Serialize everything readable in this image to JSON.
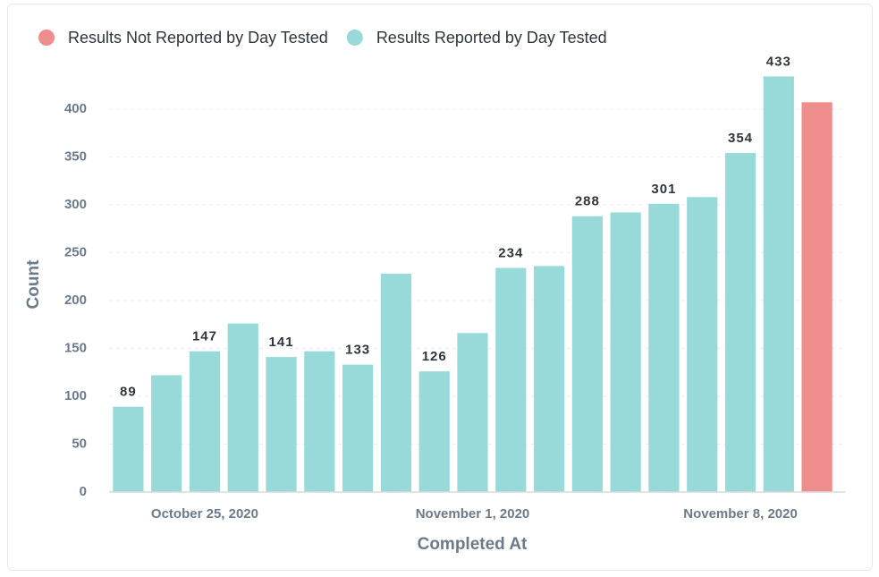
{
  "chart_data": {
    "type": "bar",
    "stacked": true,
    "x_label": "Completed At",
    "y_label": "Count",
    "categories": [
      null,
      null,
      "October 25, 2020",
      null,
      null,
      null,
      null,
      null,
      null,
      "November 1, 2020",
      null,
      null,
      null,
      null,
      null,
      null,
      "November 8, 2020",
      null,
      null
    ],
    "series": [
      {
        "name": "Results Not Reported by Day Tested",
        "color": "#ef8c8c",
        "values": [
          null,
          null,
          null,
          null,
          null,
          null,
          null,
          null,
          null,
          null,
          null,
          null,
          null,
          null,
          null,
          null,
          null,
          1,
          407
        ]
      },
      {
        "name": "Results Reported by Day Tested",
        "color": "#98d9d9",
        "values": [
          89,
          122,
          147,
          176,
          141,
          147,
          133,
          228,
          126,
          166,
          234,
          236,
          288,
          292,
          301,
          308,
          354,
          433,
          null
        ],
        "value_labels": [
          "89",
          null,
          "147",
          null,
          "141",
          null,
          "133",
          null,
          "126",
          null,
          "234",
          null,
          "288",
          null,
          "301",
          null,
          "354",
          "433",
          null
        ]
      }
    ],
    "ylim": [
      0,
      440
    ],
    "yticks": [
      0,
      50,
      100,
      150,
      200,
      250,
      300,
      350,
      400
    ],
    "grid": true
  }
}
